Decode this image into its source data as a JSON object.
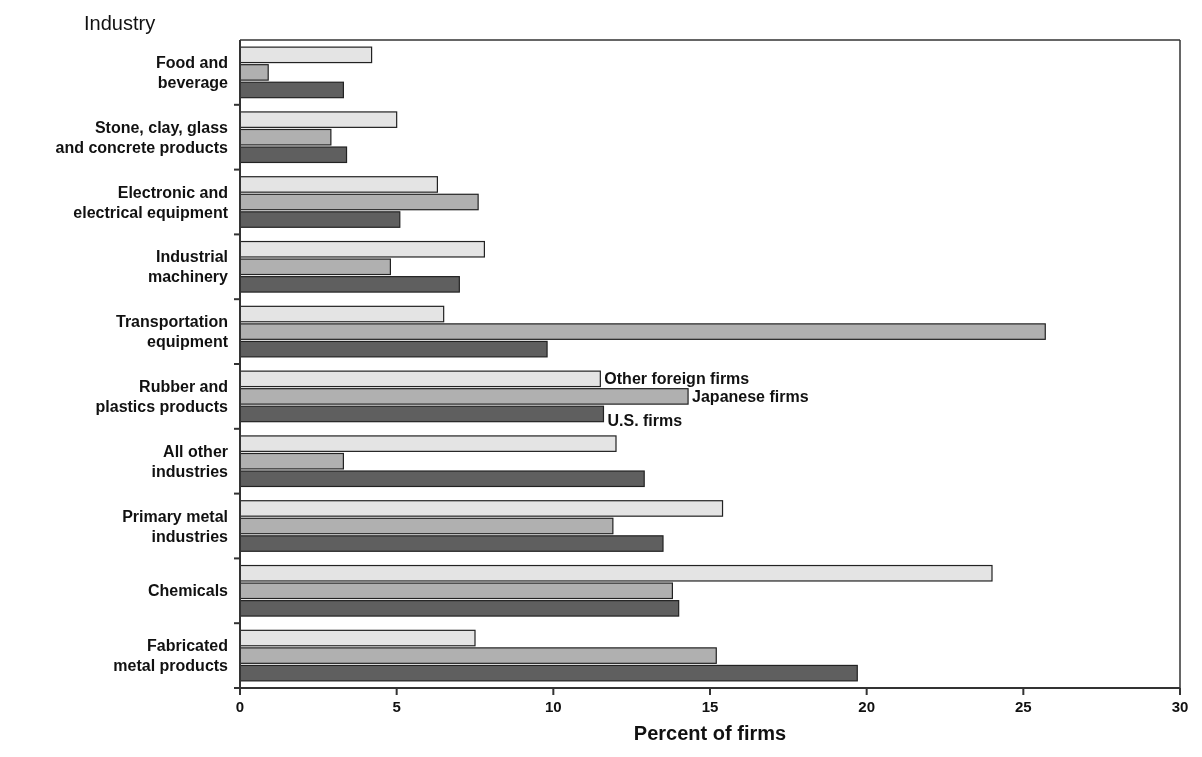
{
  "chart_data": {
    "type": "bar",
    "orientation": "horizontal",
    "ylabel": "Industry",
    "xlabel": "Percent of firms",
    "categories": [
      "Food and beverage",
      "Stone, clay, glass and concrete products",
      "Electronic and electrical equipment",
      "Industrial machinery",
      "Transportation equipment",
      "Rubber and plastics products",
      "All other industries",
      "Primary metal industries",
      "Chemicals",
      "Fabricated metal products"
    ],
    "series": [
      {
        "name": "Other foreign firms",
        "color": "#e4e4e4",
        "values": [
          4.2,
          5.0,
          6.3,
          7.8,
          6.5,
          11.5,
          12.0,
          15.4,
          24.0,
          7.5
        ]
      },
      {
        "name": "Japanese firms",
        "color": "#b0b0b0",
        "values": [
          0.9,
          2.9,
          7.6,
          4.8,
          25.7,
          14.3,
          3.3,
          11.9,
          13.8,
          15.2
        ]
      },
      {
        "name": "U.S. firms",
        "color": "#5f5f5f",
        "values": [
          3.3,
          3.4,
          5.1,
          7.0,
          9.8,
          11.6,
          12.9,
          13.5,
          14.0,
          19.7
        ]
      }
    ],
    "xlim": [
      0,
      30
    ],
    "xticks": [
      0,
      5,
      10,
      15,
      20,
      25,
      30
    ],
    "legend": false,
    "grid": false
  }
}
